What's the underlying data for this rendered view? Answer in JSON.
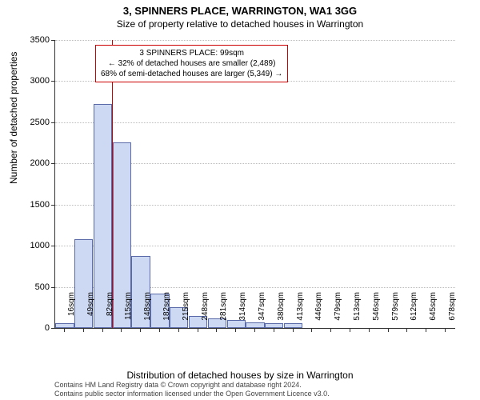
{
  "title": "3, SPINNERS PLACE, WARRINGTON, WA1 3GG",
  "subtitle": "Size of property relative to detached houses in Warrington",
  "yaxis_label": "Number of detached properties",
  "xaxis_label": "Distribution of detached houses by size in Warrington",
  "chart": {
    "type": "histogram",
    "ylim": [
      0,
      3500
    ],
    "ytick_step": 500,
    "bar_fill": "#cdd9f2",
    "bar_border": "#5a6aa8",
    "grid_color": "#bbbbbb",
    "categories": [
      "16sqm",
      "49sqm",
      "82sqm",
      "115sqm",
      "148sqm",
      "182sqm",
      "215sqm",
      "248sqm",
      "281sqm",
      "314sqm",
      "347sqm",
      "380sqm",
      "413sqm",
      "446sqm",
      "479sqm",
      "513sqm",
      "546sqm",
      "579sqm",
      "612sqm",
      "645sqm",
      "678sqm"
    ],
    "values": [
      60,
      1080,
      2720,
      2260,
      880,
      420,
      250,
      150,
      120,
      100,
      70,
      60,
      60,
      0,
      0,
      0,
      0,
      0,
      0,
      0,
      0
    ]
  },
  "annotation": {
    "line1": "3 SPINNERS PLACE: 99sqm",
    "line2": "← 32% of detached houses are smaller (2,489)",
    "line3": "68% of semi-detached houses are larger (5,349) →",
    "marker_category_index": 2.5,
    "border_color": "#cc0000"
  },
  "footer": {
    "line1": "Contains HM Land Registry data © Crown copyright and database right 2024.",
    "line2": "Contains public sector information licensed under the Open Government Licence v3.0."
  }
}
